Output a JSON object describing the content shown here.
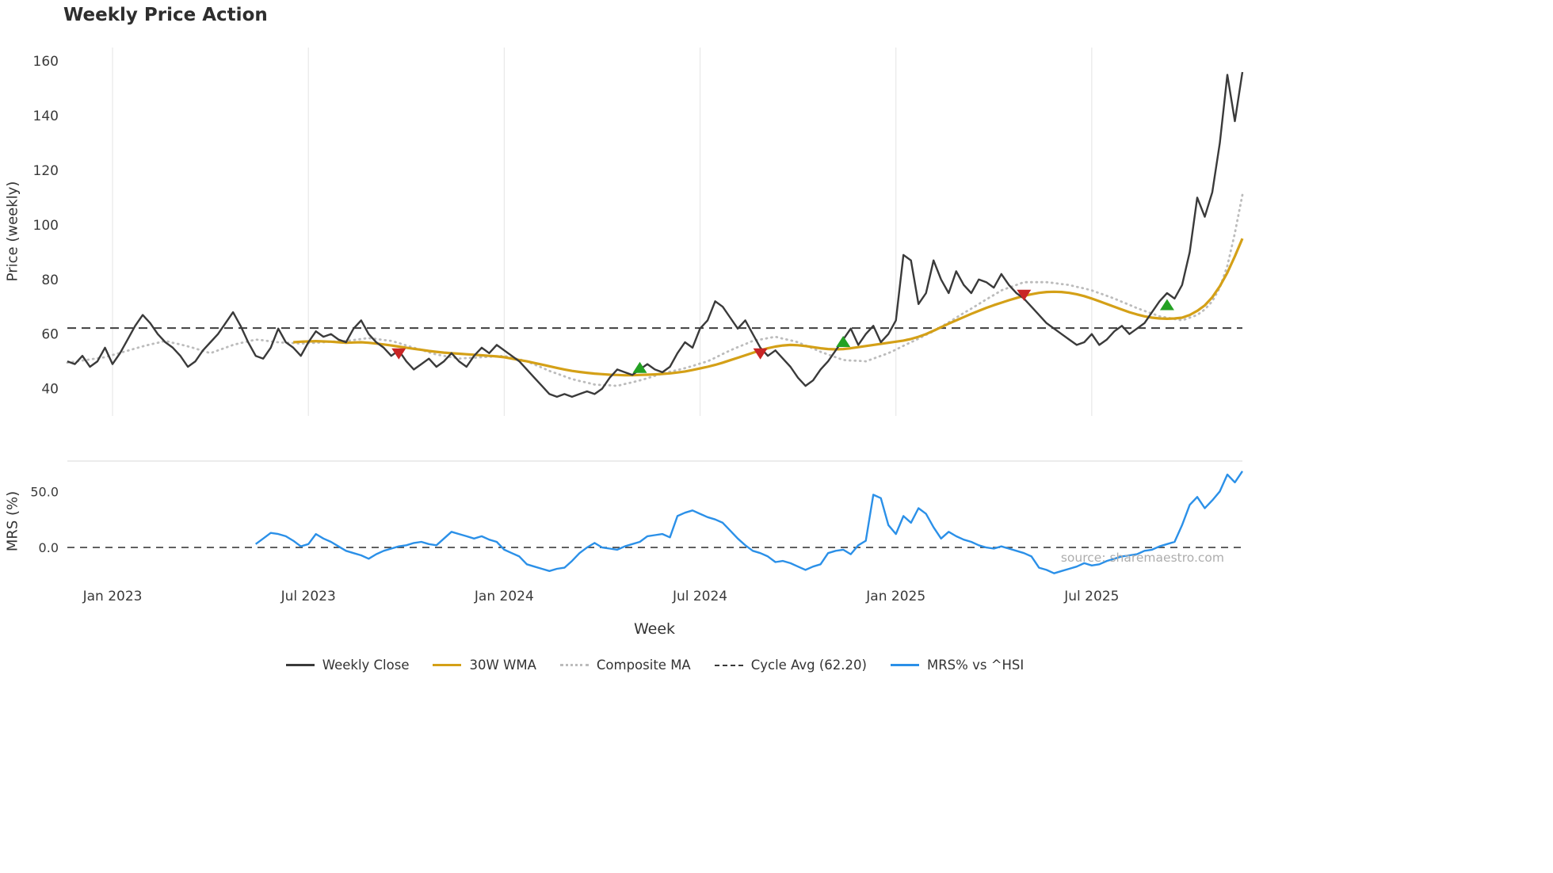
{
  "chart_data": {
    "type": "line",
    "title": "Weekly Price Action",
    "xlabel": "Week",
    "source": "source: sharemaestro.com",
    "x_ticks": [
      {
        "index": 6,
        "label": "Jan 2023"
      },
      {
        "index": 32,
        "label": "Jul 2023"
      },
      {
        "index": 58,
        "label": "Jan 2024"
      },
      {
        "index": 84,
        "label": "Jul 2024"
      },
      {
        "index": 110,
        "label": "Jan 2025"
      },
      {
        "index": 136,
        "label": "Jul 2025"
      }
    ],
    "price_panel": {
      "ylabel": "Price (weekly)",
      "ylim": [
        30,
        165
      ],
      "yticks": [
        40,
        60,
        80,
        100,
        120,
        140,
        160
      ],
      "cycle_avg": 62.2,
      "grid": "vertical-only"
    },
    "mrs_panel": {
      "ylabel": "MRS (%)",
      "ylim": [
        -31,
        77
      ],
      "yticks": [
        0,
        50
      ],
      "ytick_labels": [
        "0.0",
        "50.0"
      ],
      "zero_line": 0
    },
    "colors": {
      "weekly_close": "#3a3a3a",
      "wma30": "#d4a017",
      "composite": "#bcbcbc",
      "cycle_avg": "#3f3f3f",
      "mrs": "#2b90e8",
      "buy": "#23a123",
      "sell": "#c92525",
      "grid": "#e8e8e8",
      "panel_border": "#d8d8d8"
    },
    "series": {
      "weekly_close": {
        "name": "Weekly Close",
        "values": [
          50,
          49,
          52,
          48,
          50,
          55,
          49,
          53,
          58,
          63,
          67,
          64,
          60,
          57,
          55,
          52,
          48,
          50,
          54,
          57,
          60,
          64,
          68,
          63,
          57,
          52,
          51,
          55,
          62,
          57,
          55,
          52,
          57,
          61,
          59,
          60,
          58,
          57,
          62,
          65,
          60,
          57,
          55,
          52,
          54,
          50,
          47,
          49,
          51,
          48,
          50,
          53,
          50,
          48,
          52,
          55,
          53,
          56,
          54,
          52,
          50,
          47,
          44,
          41,
          38,
          37,
          38,
          37,
          38,
          39,
          38,
          40,
          44,
          47,
          46,
          45,
          47,
          49,
          47,
          46,
          48,
          53,
          57,
          55,
          62,
          65,
          72,
          70,
          66,
          62,
          65,
          60,
          55,
          52,
          54,
          51,
          48,
          44,
          41,
          43,
          47,
          50,
          54,
          58,
          62,
          56,
          60,
          63,
          57,
          60,
          65,
          89,
          87,
          71,
          75,
          87,
          80,
          75,
          83,
          78,
          75,
          80,
          79,
          77,
          82,
          78,
          75,
          73,
          70,
          67,
          64,
          62,
          60,
          58,
          56,
          57,
          60,
          56,
          58,
          61,
          63,
          60,
          62,
          64,
          68,
          72,
          75,
          73,
          78,
          90,
          110,
          103,
          112,
          130,
          155,
          138,
          156
        ]
      },
      "wma30": {
        "name": "30W WMA",
        "values": [
          null,
          null,
          null,
          null,
          null,
          null,
          null,
          null,
          null,
          null,
          null,
          null,
          null,
          null,
          null,
          null,
          null,
          null,
          null,
          null,
          null,
          null,
          null,
          null,
          null,
          null,
          null,
          null,
          null,
          null,
          57,
          57.2,
          57.3,
          57.4,
          57.3,
          57.2,
          57,
          56.8,
          56.9,
          57,
          56.8,
          56.5,
          56.2,
          55.8,
          55.4,
          55,
          54.6,
          54.2,
          53.8,
          53.5,
          53.2,
          53,
          52.8,
          52.6,
          52.4,
          52.2,
          52,
          51.8,
          51.5,
          51,
          50.5,
          50,
          49.4,
          48.8,
          48.2,
          47.6,
          47,
          46.5,
          46.1,
          45.8,
          45.5,
          45.3,
          45.1,
          45,
          44.9,
          44.9,
          45,
          45.1,
          45.2,
          45.4,
          45.6,
          45.9,
          46.3,
          46.8,
          47.4,
          48,
          48.7,
          49.5,
          50.4,
          51.3,
          52.2,
          53.1,
          54,
          54.8,
          55.4,
          55.8,
          56,
          55.9,
          55.6,
          55.2,
          54.8,
          54.5,
          54.4,
          54.5,
          54.8,
          55.2,
          55.6,
          56,
          56.4,
          56.8,
          57.2,
          57.6,
          58.2,
          59,
          60,
          61.2,
          62.5,
          63.8,
          65,
          66.2,
          67.4,
          68.5,
          69.6,
          70.6,
          71.5,
          72.4,
          73.2,
          74,
          74.6,
          75.1,
          75.4,
          75.5,
          75.4,
          75.1,
          74.6,
          73.9,
          73,
          72,
          71,
          70,
          69,
          68,
          67.2,
          66.5,
          66,
          65.7,
          65.6,
          65.7,
          66,
          67,
          68.5,
          70.5,
          73.5,
          77.5,
          82.5,
          88.5,
          95
        ]
      },
      "composite_ma": {
        "name": "Composite MA",
        "style": "dotted",
        "values": [
          49.5,
          49.9,
          50.3,
          50.7,
          51.1,
          51.5,
          52.3,
          53.1,
          53.9,
          54.7,
          55.5,
          56.2,
          56.8,
          57.5,
          56.8,
          56.2,
          55.5,
          54.7,
          53.8,
          53,
          54,
          55,
          56,
          56.7,
          57.3,
          58,
          57.7,
          57.3,
          57,
          56.8,
          56.7,
          56.5,
          56.7,
          56.8,
          57,
          57.2,
          57.3,
          57.5,
          57.8,
          58.2,
          58.5,
          58.2,
          57.8,
          57.5,
          56.7,
          55.8,
          55,
          54.2,
          53.3,
          52.5,
          52,
          51.5,
          51,
          51.2,
          51.3,
          51.5,
          51.7,
          51.8,
          52,
          51.3,
          50.7,
          50,
          48.8,
          47.7,
          46.5,
          45.5,
          44.5,
          43.5,
          42.8,
          42.2,
          41.5,
          41.3,
          41.2,
          41,
          41.7,
          42.3,
          43,
          43.8,
          44.7,
          45.5,
          46.2,
          46.8,
          47.5,
          48.3,
          49.2,
          50,
          51.3,
          52.7,
          54,
          55.2,
          56.3,
          57.5,
          58,
          58.5,
          59,
          58.3,
          57.7,
          57,
          55.8,
          54.7,
          53.5,
          52.5,
          51.5,
          50.5,
          50.3,
          50.2,
          50,
          51,
          52,
          53,
          54.3,
          55.7,
          57,
          58.3,
          59.7,
          61,
          62.7,
          64.3,
          66,
          67.7,
          69.3,
          71,
          72.7,
          74.3,
          76,
          77,
          78,
          79,
          79,
          79,
          79,
          78.7,
          78.3,
          78,
          77.3,
          76.7,
          76,
          75,
          74,
          73,
          71.8,
          70.7,
          69.5,
          68.5,
          67.5,
          66.5,
          66,
          65.5,
          65,
          66,
          67,
          69,
          72,
          77,
          85,
          97,
          111
        ]
      },
      "mrs": {
        "name": "MRS% vs ^HSI",
        "values": [
          null,
          null,
          null,
          null,
          null,
          null,
          null,
          null,
          null,
          null,
          null,
          null,
          null,
          null,
          null,
          null,
          null,
          null,
          null,
          null,
          null,
          null,
          null,
          null,
          null,
          3,
          8,
          13,
          12,
          10,
          6,
          1,
          3,
          12,
          8,
          5,
          1,
          -3,
          -5,
          -7,
          -10,
          -6,
          -3,
          -1,
          1,
          2,
          4,
          5,
          3,
          2,
          8,
          14,
          12,
          10,
          8,
          10,
          7,
          5,
          -2,
          -5,
          -8,
          -15,
          -17,
          -19,
          -21,
          -19,
          -18,
          -12,
          -5,
          0,
          4,
          0,
          -1,
          -2,
          1,
          3,
          5,
          10,
          11,
          12,
          9,
          28,
          31,
          33,
          30,
          27,
          25,
          22,
          15,
          8,
          2,
          -3,
          -5,
          -8,
          -13,
          -12,
          -14,
          -17,
          -20,
          -17,
          -15,
          -5,
          -3,
          -2,
          -6,
          2,
          6,
          47,
          44,
          20,
          12,
          28,
          22,
          35,
          30,
          18,
          8,
          14,
          10,
          7,
          5,
          2,
          0,
          -1,
          1,
          -1,
          -3,
          -5,
          -8,
          -18,
          -20,
          -23,
          -21,
          -19,
          -17,
          -14,
          -16,
          -15,
          -12,
          -10,
          -8,
          -7,
          -6,
          -3,
          -2,
          1,
          3,
          5,
          20,
          38,
          45,
          35,
          42,
          50,
          65,
          58,
          68
        ]
      }
    },
    "signals": {
      "sell": [
        {
          "index": 44,
          "price": 53
        },
        {
          "index": 92,
          "price": 53
        },
        {
          "index": 127,
          "price": 74.5
        }
      ],
      "buy": [
        {
          "index": 76,
          "price": 47.5
        },
        {
          "index": 103,
          "price": 57
        },
        {
          "index": 146,
          "price": 70.5
        }
      ]
    },
    "legend": [
      {
        "label": "Weekly Close",
        "color": "#3a3a3a",
        "style": "solid"
      },
      {
        "label": "30W WMA",
        "color": "#d4a017",
        "style": "solid"
      },
      {
        "label": "Composite MA",
        "color": "#bcbcbc",
        "style": "dotted"
      },
      {
        "label": "Cycle Avg (62.20)",
        "color": "#3a3a3a",
        "style": "dashed"
      },
      {
        "label": "MRS% vs ^HSI",
        "color": "#2b90e8",
        "style": "solid"
      }
    ]
  }
}
